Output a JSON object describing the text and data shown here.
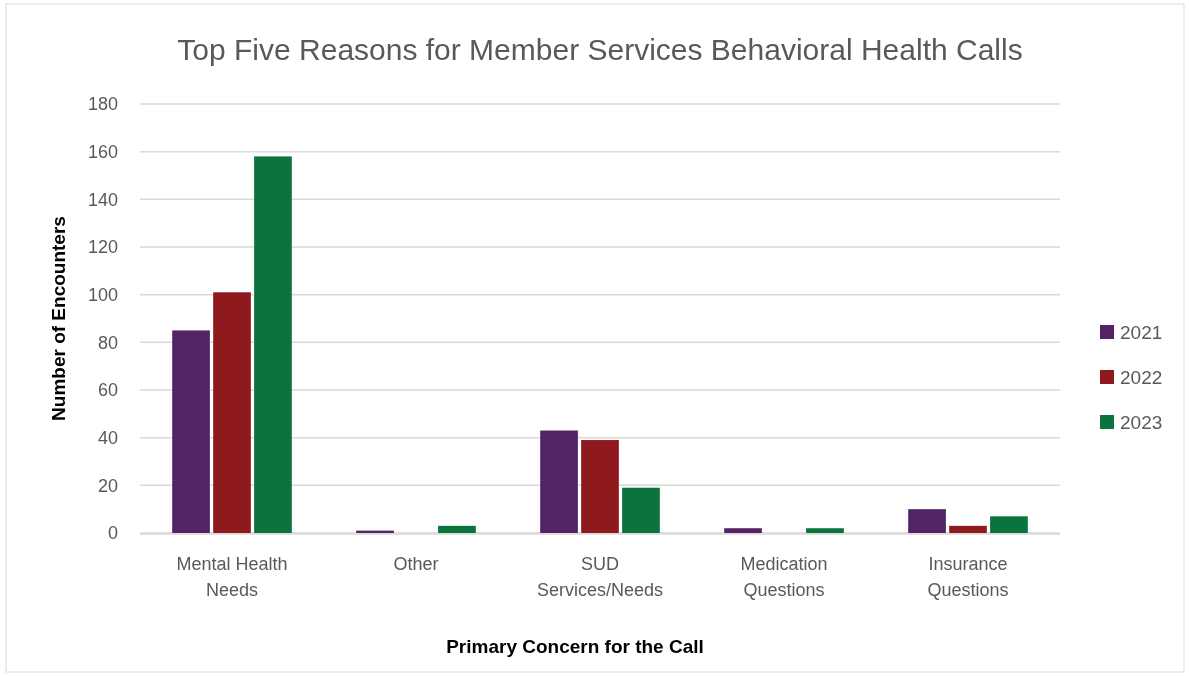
{
  "chart_data": {
    "type": "bar",
    "title": "Top Five Reasons for Member Services Behavioral Health Calls",
    "xlabel": "Primary Concern for the Call",
    "ylabel": "Number of Encounters",
    "categories": [
      "Mental Health Needs",
      "Other",
      "SUD Services/Needs",
      "Medication Questions",
      "Insurance Questions"
    ],
    "series": [
      {
        "name": "2021",
        "color": "#532366",
        "values": [
          85,
          1,
          43,
          2,
          10
        ]
      },
      {
        "name": "2022",
        "color": "#8e1a1e",
        "values": [
          101,
          0,
          39,
          0,
          3
        ]
      },
      {
        "name": "2023",
        "color": "#0b743c",
        "values": [
          158,
          3,
          19,
          2,
          7
        ]
      }
    ],
    "ylim": [
      0,
      180
    ],
    "yticks": [
      0,
      20,
      40,
      60,
      80,
      100,
      120,
      140,
      160,
      180
    ],
    "grid": "y",
    "legend": "right"
  }
}
